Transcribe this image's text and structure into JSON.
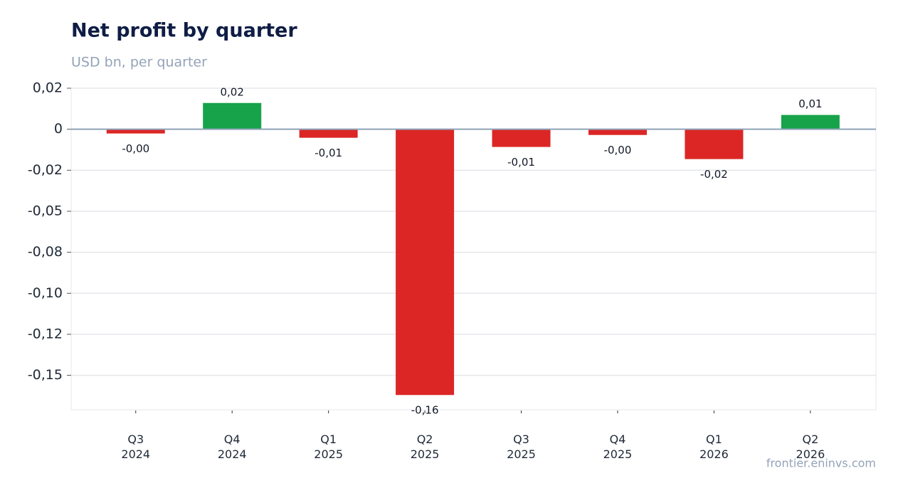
{
  "chart_data": {
    "type": "bar",
    "title": "Net profit by quarter",
    "subtitle": "USD bn, per quarter",
    "source": "frontier.eninvs.com",
    "categories": [
      [
        "Q3",
        "2024"
      ],
      [
        "Q4",
        "2024"
      ],
      [
        "Q1",
        "2025"
      ],
      [
        "Q2",
        "2025"
      ],
      [
        "Q3",
        "2025"
      ],
      [
        "Q4",
        "2025"
      ],
      [
        "Q1",
        "2026"
      ],
      [
        "Q2",
        "2026"
      ]
    ],
    "values": [
      -0.0026,
      0.016,
      -0.0052,
      -0.162,
      -0.0108,
      -0.0035,
      -0.0182,
      0.0087
    ],
    "value_labels": [
      "-0,00",
      "0,02",
      "-0,01",
      "-0,16",
      "-0,01",
      "-0,00",
      "-0,02",
      "0,01"
    ],
    "colors": [
      "#dc2626",
      "#16a34a",
      "#dc2626",
      "#dc2626",
      "#dc2626",
      "#dc2626",
      "#dc2626",
      "#16a34a"
    ],
    "ylim": [
      -0.171,
      0.025
    ],
    "yticks": [
      {
        "value": 0.025,
        "label": "0,02"
      },
      0,
      {
        "value": -0.025,
        "label": "-0,02"
      },
      {
        "value": -0.05,
        "label": "-0,05"
      },
      {
        "value": -0.075,
        "label": "-0,08"
      },
      {
        "value": -0.1,
        "label": "-0,10"
      },
      {
        "value": -0.125,
        "label": "-0,12"
      },
      {
        "value": -0.15,
        "label": "-0,15"
      }
    ],
    "grid": true
  }
}
